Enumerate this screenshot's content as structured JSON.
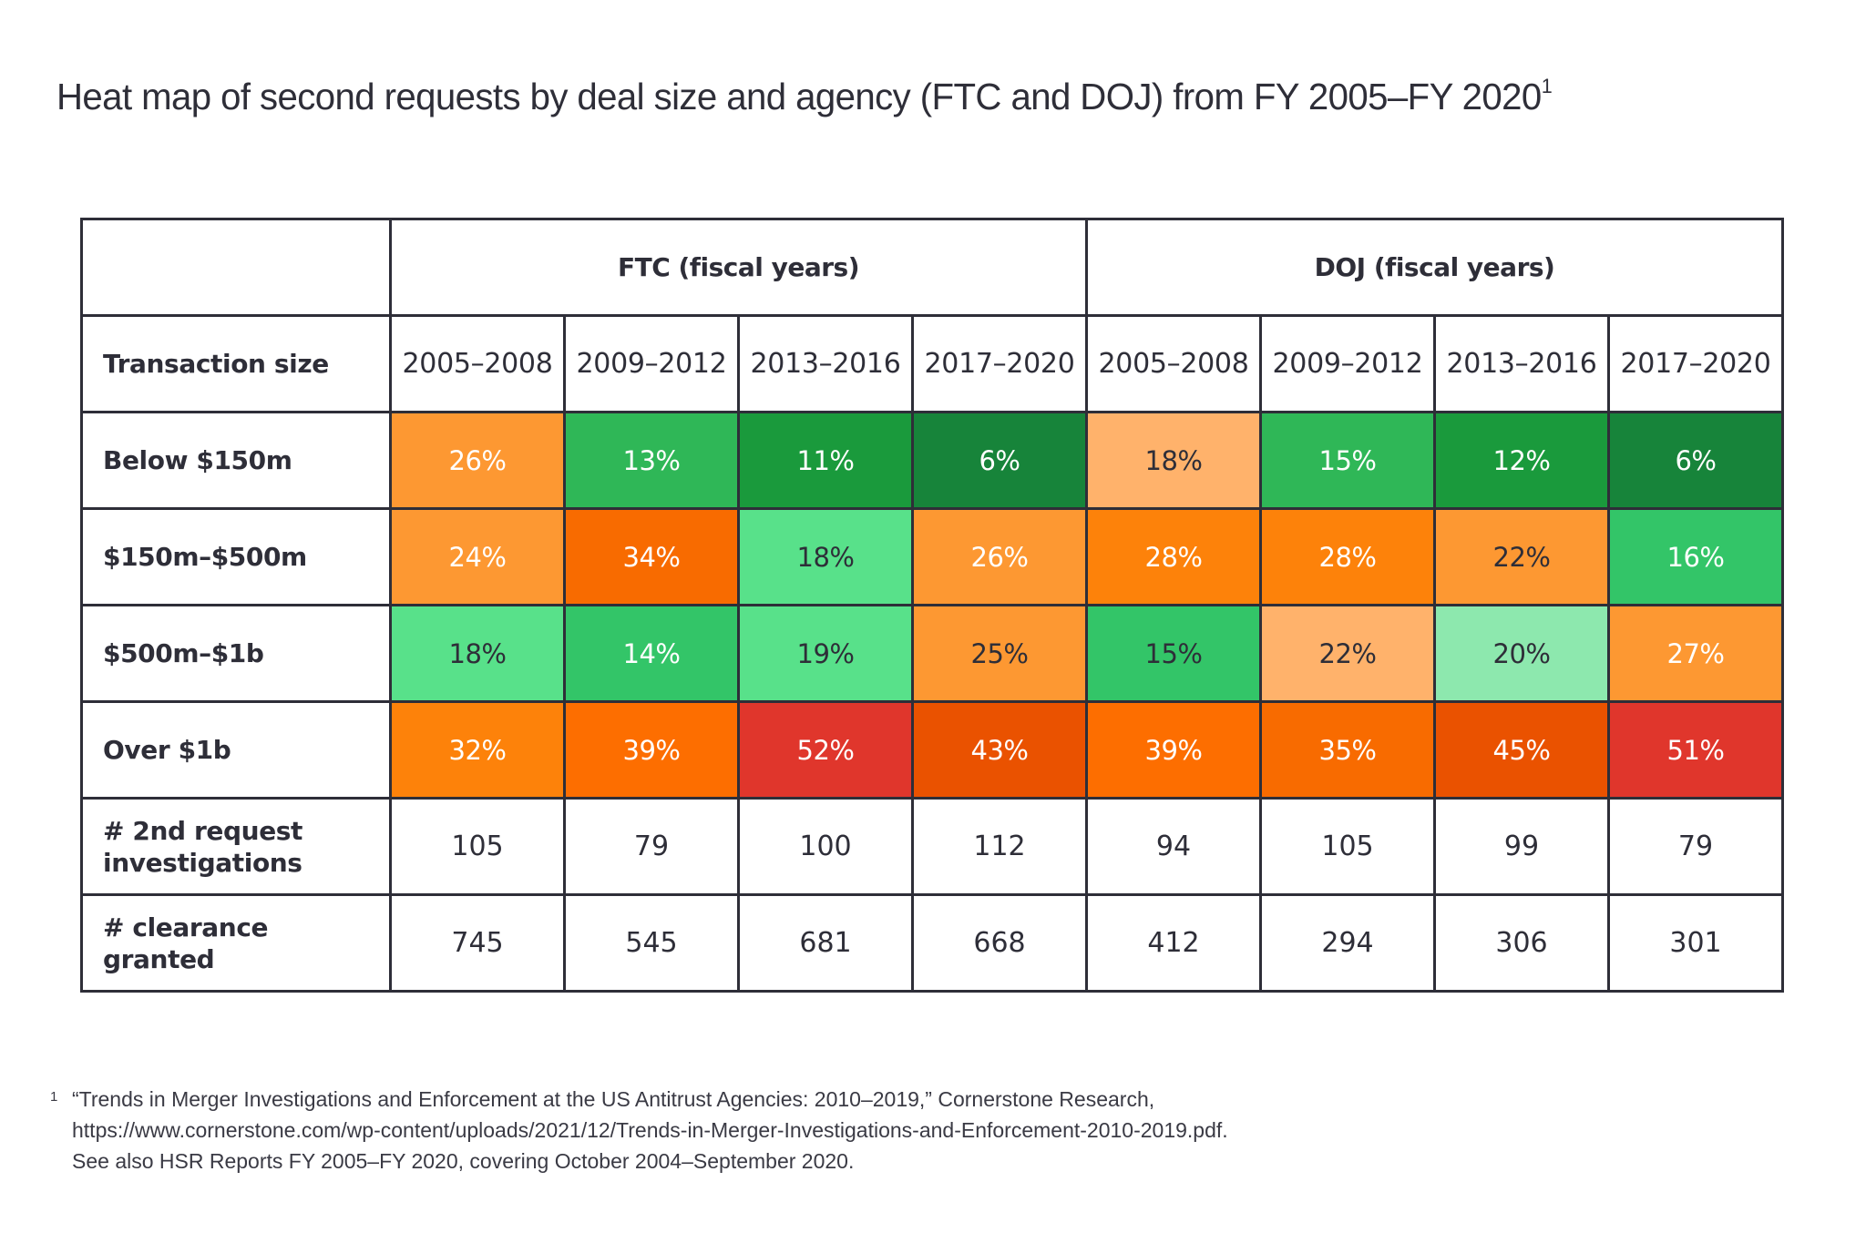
{
  "title": "Heat map of second requests by deal size and agency (FTC and DOJ) from FY 2005–FY 2020",
  "title_footnote_mark": "1",
  "chart_data": {
    "type": "heatmap",
    "title": "Heat map of second requests by deal size and agency (FTC and DOJ) from FY 2005–FY 2020",
    "row_header": "Transaction size",
    "agencies": [
      {
        "name": "FTC (fiscal years)",
        "periods": [
          "2005–2008",
          "2009–2012",
          "2013–2016",
          "2017–2020"
        ]
      },
      {
        "name": "DOJ (fiscal years)",
        "periods": [
          "2005–2008",
          "2009–2012",
          "2013–2016",
          "2017–2020"
        ]
      }
    ],
    "columns": [
      "FTC 2005–2008",
      "FTC 2009–2012",
      "FTC 2013–2016",
      "FTC 2017–2020",
      "DOJ 2005–2008",
      "DOJ 2009–2012",
      "DOJ 2013–2016",
      "DOJ 2017–2020"
    ],
    "unit": "%",
    "rows": [
      {
        "label": "Below $150m",
        "values": [
          26,
          13,
          11,
          6,
          18,
          15,
          12,
          6
        ],
        "colors": [
          "#fd9832",
          "#2fb757",
          "#1a9a3c",
          "#17843a",
          "#ffb26b",
          "#2fb757",
          "#1a9a3c",
          "#17843a"
        ],
        "text_colors": [
          "#ffffff",
          "#ffffff",
          "#ffffff",
          "#ffffff",
          "#2e2e38",
          "#ffffff",
          "#ffffff",
          "#ffffff"
        ]
      },
      {
        "label": "$150m–$500m",
        "values": [
          24,
          34,
          18,
          26,
          28,
          28,
          22,
          16
        ],
        "colors": [
          "#fd9832",
          "#f86b00",
          "#58e18a",
          "#fd9832",
          "#fd820a",
          "#fd820a",
          "#fd9832",
          "#33c568"
        ],
        "text_colors": [
          "#ffffff",
          "#ffffff",
          "#2e2e38",
          "#ffffff",
          "#ffffff",
          "#ffffff",
          "#2e2e38",
          "#ffffff"
        ]
      },
      {
        "label": "$500m–$1b",
        "values": [
          18,
          14,
          19,
          25,
          15,
          22,
          20,
          27
        ],
        "colors": [
          "#58e18a",
          "#33c568",
          "#58e18a",
          "#fd9832",
          "#33c568",
          "#ffb26b",
          "#8de8ae",
          "#fd9832"
        ],
        "text_colors": [
          "#2e2e38",
          "#ffffff",
          "#2e2e38",
          "#2e2e38",
          "#2e2e38",
          "#2e2e38",
          "#2e2e38",
          "#ffffff"
        ]
      },
      {
        "label": "Over $1b",
        "values": [
          32,
          39,
          52,
          43,
          39,
          35,
          45,
          51
        ],
        "colors": [
          "#fd820a",
          "#fd6e00",
          "#e0362c",
          "#ea5200",
          "#fd6e00",
          "#f86b00",
          "#ea5200",
          "#e0362c"
        ],
        "text_colors": [
          "#ffffff",
          "#ffffff",
          "#ffffff",
          "#ffffff",
          "#ffffff",
          "#ffffff",
          "#ffffff",
          "#ffffff"
        ]
      }
    ],
    "summary_rows": [
      {
        "label_line1": "# 2nd request",
        "label_line2": "investigations",
        "values": [
          105,
          79,
          100,
          112,
          94,
          105,
          99,
          79
        ]
      },
      {
        "label_line1": "# clearance",
        "label_line2": "granted",
        "values": [
          745,
          545,
          681,
          668,
          412,
          294,
          306,
          301
        ]
      }
    ]
  },
  "footnote": {
    "mark": "1",
    "lines": [
      "“Trends in Merger Investigations and Enforcement at the US Antitrust Agencies: 2010–2019,” Cornerstone Research,",
      "https://www.cornerstone.com/wp-content/uploads/2021/12/Trends-in-Merger-Investigations-and-Enforcement-2010-2019.pdf.",
      "See also HSR Reports FY 2005–FY 2020, covering October 2004–September 2020."
    ]
  }
}
